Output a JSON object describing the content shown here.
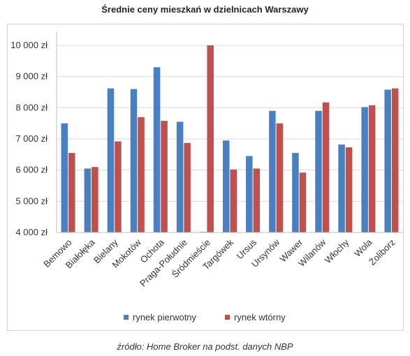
{
  "title": "Średnie ceny mieszkań w dzielnicach Warszawy",
  "source": "źródło: Home Broker na podst. danych NBP",
  "colors": {
    "primary": "#4a7fc1",
    "secondary": "#c0504d",
    "grid": "#d9d9d9"
  },
  "chart_data": {
    "type": "bar",
    "title": "Średnie ceny mieszkań w dzielnicach Warszawy",
    "xlabel": "",
    "ylabel": "",
    "ylim": [
      4000,
      10000
    ],
    "yticks": [
      4000,
      5000,
      6000,
      7000,
      8000,
      9000,
      10000
    ],
    "ytick_labels": [
      "4 000 zł",
      "5 000 zł",
      "6 000 zł",
      "7 000 zł",
      "8 000 zł",
      "9 000 zł",
      "10 000 zł"
    ],
    "grid": true,
    "legend_position": "bottom",
    "categories": [
      "Bemowo",
      "Białołęka",
      "Bielany",
      "Mokotów",
      "Ochota",
      "Praga-Południe",
      "Śródmieście",
      "Targówek",
      "Ursus",
      "Ursynów",
      "Wawer",
      "Wilanów",
      "Włochy",
      "Wola",
      "Żoliborz"
    ],
    "series": [
      {
        "name": "rynek pierwotny",
        "color": "#4a7fc1",
        "values": [
          7500,
          6050,
          8620,
          8600,
          9300,
          7550,
          4020,
          6950,
          6450,
          7900,
          6550,
          7900,
          6820,
          8020,
          8580
        ]
      },
      {
        "name": "rynek wtórny",
        "color": "#c0504d",
        "values": [
          6550,
          6100,
          6920,
          7700,
          7580,
          6870,
          10000,
          6020,
          6050,
          7500,
          5920,
          8170,
          6730,
          8080,
          8620
        ]
      }
    ]
  }
}
